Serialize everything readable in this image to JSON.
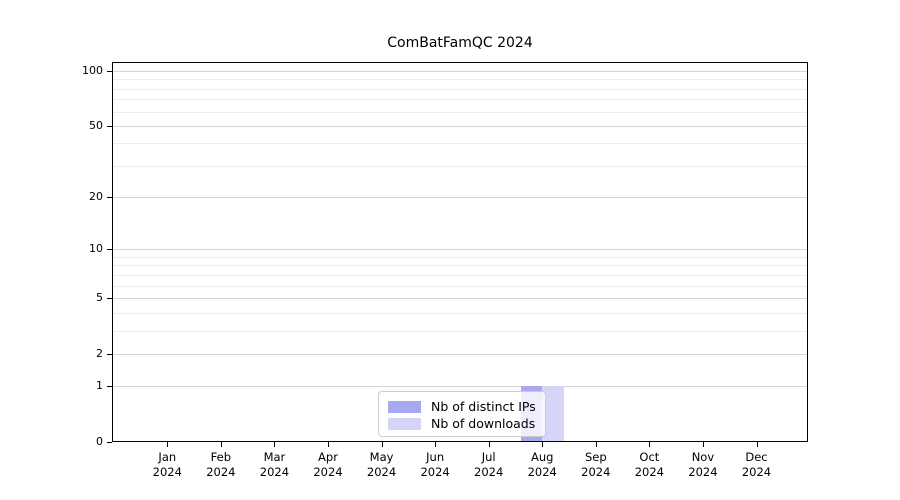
{
  "title": "ComBatFamQC 2024",
  "colors": {
    "distinct_ips_bar": "#a8a8f0",
    "downloads_bar": "#d5d5f8",
    "grid_major": "#d4d4d4",
    "grid_minor": "#ececec",
    "axis": "#000000",
    "legend_border": "#cccccc"
  },
  "legend": {
    "entries": [
      {
        "label": "Nb of distinct IPs",
        "color": "#a8a8f0"
      },
      {
        "label": "Nb of downloads",
        "color": "#d5d5f8"
      }
    ]
  },
  "chart_data": {
    "type": "bar",
    "title": "ComBatFamQC 2024",
    "xlabel": "",
    "ylabel": "",
    "categories": [
      "Jan 2024",
      "Feb 2024",
      "Mar 2024",
      "Apr 2024",
      "May 2024",
      "Jun 2024",
      "Jul 2024",
      "Aug 2024",
      "Sep 2024",
      "Oct 2024",
      "Nov 2024",
      "Dec 2024"
    ],
    "series": [
      {
        "name": "Nb of distinct IPs",
        "color": "#a8a8f0",
        "values": [
          0,
          0,
          0,
          0,
          0,
          0,
          0,
          1,
          0,
          0,
          0,
          0
        ]
      },
      {
        "name": "Nb of downloads",
        "color": "#d5d5f8",
        "values": [
          0,
          0,
          0,
          0,
          0,
          0,
          0,
          1,
          0,
          0,
          0,
          0
        ]
      }
    ],
    "y_scale": "log1p",
    "ylim": [
      0,
      113
    ],
    "y_ticks": [
      0,
      1,
      2,
      5,
      10,
      20,
      50,
      100
    ],
    "y_minor_gridlines": [
      3,
      4,
      6,
      7,
      8,
      9,
      30,
      40,
      60,
      70,
      80,
      90
    ],
    "grid": true,
    "legend_position": "lower center"
  }
}
